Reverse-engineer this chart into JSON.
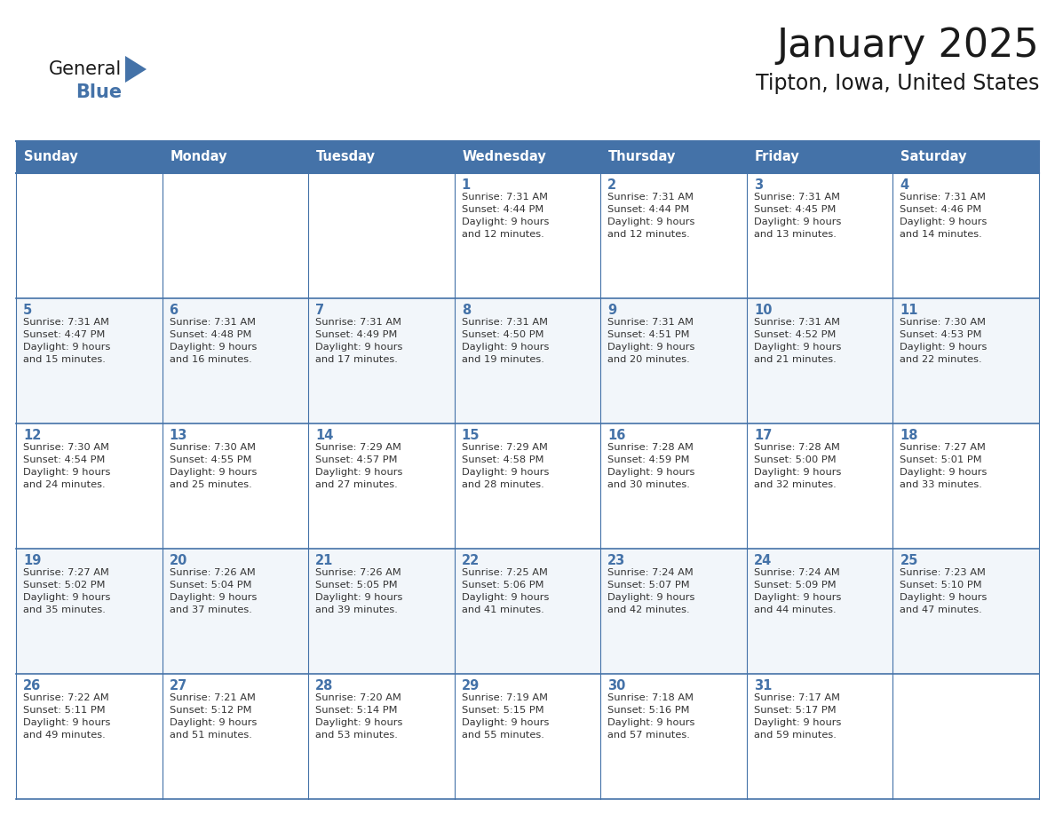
{
  "title": "January 2025",
  "subtitle": "Tipton, Iowa, United States",
  "header_bg": "#4472a8",
  "header_text_color": "#ffffff",
  "cell_bg_even": "#f2f6fa",
  "cell_bg_odd": "#ffffff",
  "border_color": "#4472a8",
  "separator_color": "#4472a8",
  "day_names": [
    "Sunday",
    "Monday",
    "Tuesday",
    "Wednesday",
    "Thursday",
    "Friday",
    "Saturday"
  ],
  "title_color": "#1a1a1a",
  "subtitle_color": "#1a1a1a",
  "day_num_color": "#4472a8",
  "cell_text_color": "#333333",
  "logo_general_color": "#1a1a1a",
  "logo_blue_color": "#4472a8",
  "logo_triangle_color": "#4472a8",
  "calendar_data": [
    [
      {
        "day": null,
        "info": null
      },
      {
        "day": null,
        "info": null
      },
      {
        "day": null,
        "info": null
      },
      {
        "day": 1,
        "info": "Sunrise: 7:31 AM\nSunset: 4:44 PM\nDaylight: 9 hours\nand 12 minutes."
      },
      {
        "day": 2,
        "info": "Sunrise: 7:31 AM\nSunset: 4:44 PM\nDaylight: 9 hours\nand 12 minutes."
      },
      {
        "day": 3,
        "info": "Sunrise: 7:31 AM\nSunset: 4:45 PM\nDaylight: 9 hours\nand 13 minutes."
      },
      {
        "day": 4,
        "info": "Sunrise: 7:31 AM\nSunset: 4:46 PM\nDaylight: 9 hours\nand 14 minutes."
      }
    ],
    [
      {
        "day": 5,
        "info": "Sunrise: 7:31 AM\nSunset: 4:47 PM\nDaylight: 9 hours\nand 15 minutes."
      },
      {
        "day": 6,
        "info": "Sunrise: 7:31 AM\nSunset: 4:48 PM\nDaylight: 9 hours\nand 16 minutes."
      },
      {
        "day": 7,
        "info": "Sunrise: 7:31 AM\nSunset: 4:49 PM\nDaylight: 9 hours\nand 17 minutes."
      },
      {
        "day": 8,
        "info": "Sunrise: 7:31 AM\nSunset: 4:50 PM\nDaylight: 9 hours\nand 19 minutes."
      },
      {
        "day": 9,
        "info": "Sunrise: 7:31 AM\nSunset: 4:51 PM\nDaylight: 9 hours\nand 20 minutes."
      },
      {
        "day": 10,
        "info": "Sunrise: 7:31 AM\nSunset: 4:52 PM\nDaylight: 9 hours\nand 21 minutes."
      },
      {
        "day": 11,
        "info": "Sunrise: 7:30 AM\nSunset: 4:53 PM\nDaylight: 9 hours\nand 22 minutes."
      }
    ],
    [
      {
        "day": 12,
        "info": "Sunrise: 7:30 AM\nSunset: 4:54 PM\nDaylight: 9 hours\nand 24 minutes."
      },
      {
        "day": 13,
        "info": "Sunrise: 7:30 AM\nSunset: 4:55 PM\nDaylight: 9 hours\nand 25 minutes."
      },
      {
        "day": 14,
        "info": "Sunrise: 7:29 AM\nSunset: 4:57 PM\nDaylight: 9 hours\nand 27 minutes."
      },
      {
        "day": 15,
        "info": "Sunrise: 7:29 AM\nSunset: 4:58 PM\nDaylight: 9 hours\nand 28 minutes."
      },
      {
        "day": 16,
        "info": "Sunrise: 7:28 AM\nSunset: 4:59 PM\nDaylight: 9 hours\nand 30 minutes."
      },
      {
        "day": 17,
        "info": "Sunrise: 7:28 AM\nSunset: 5:00 PM\nDaylight: 9 hours\nand 32 minutes."
      },
      {
        "day": 18,
        "info": "Sunrise: 7:27 AM\nSunset: 5:01 PM\nDaylight: 9 hours\nand 33 minutes."
      }
    ],
    [
      {
        "day": 19,
        "info": "Sunrise: 7:27 AM\nSunset: 5:02 PM\nDaylight: 9 hours\nand 35 minutes."
      },
      {
        "day": 20,
        "info": "Sunrise: 7:26 AM\nSunset: 5:04 PM\nDaylight: 9 hours\nand 37 minutes."
      },
      {
        "day": 21,
        "info": "Sunrise: 7:26 AM\nSunset: 5:05 PM\nDaylight: 9 hours\nand 39 minutes."
      },
      {
        "day": 22,
        "info": "Sunrise: 7:25 AM\nSunset: 5:06 PM\nDaylight: 9 hours\nand 41 minutes."
      },
      {
        "day": 23,
        "info": "Sunrise: 7:24 AM\nSunset: 5:07 PM\nDaylight: 9 hours\nand 42 minutes."
      },
      {
        "day": 24,
        "info": "Sunrise: 7:24 AM\nSunset: 5:09 PM\nDaylight: 9 hours\nand 44 minutes."
      },
      {
        "day": 25,
        "info": "Sunrise: 7:23 AM\nSunset: 5:10 PM\nDaylight: 9 hours\nand 47 minutes."
      }
    ],
    [
      {
        "day": 26,
        "info": "Sunrise: 7:22 AM\nSunset: 5:11 PM\nDaylight: 9 hours\nand 49 minutes."
      },
      {
        "day": 27,
        "info": "Sunrise: 7:21 AM\nSunset: 5:12 PM\nDaylight: 9 hours\nand 51 minutes."
      },
      {
        "day": 28,
        "info": "Sunrise: 7:20 AM\nSunset: 5:14 PM\nDaylight: 9 hours\nand 53 minutes."
      },
      {
        "day": 29,
        "info": "Sunrise: 7:19 AM\nSunset: 5:15 PM\nDaylight: 9 hours\nand 55 minutes."
      },
      {
        "day": 30,
        "info": "Sunrise: 7:18 AM\nSunset: 5:16 PM\nDaylight: 9 hours\nand 57 minutes."
      },
      {
        "day": 31,
        "info": "Sunrise: 7:17 AM\nSunset: 5:17 PM\nDaylight: 9 hours\nand 59 minutes."
      },
      {
        "day": null,
        "info": null
      }
    ]
  ]
}
